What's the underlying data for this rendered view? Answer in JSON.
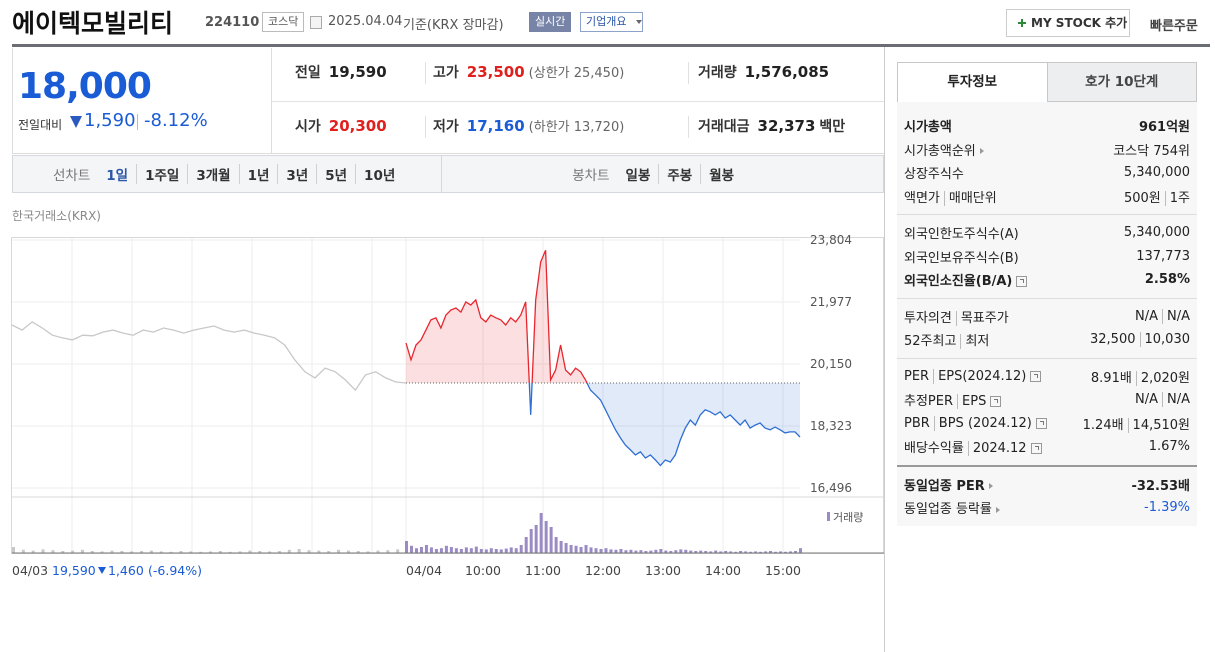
{
  "header": {
    "name": "에이텍모빌리티",
    "code": "224110",
    "market": "코스닥",
    "date": "2025.04.04",
    "basis": "기준(KRX 장마감)",
    "realtime": "실시간",
    "overview": "기업개요",
    "my_stock": "MY STOCK 추가",
    "quick_order": "빠른주문"
  },
  "quote": {
    "price": "18,000",
    "change_label": "전일대비",
    "change": "1,590",
    "change_rate": "-8.12%"
  },
  "summary": {
    "rows": [
      [
        {
          "label": "전일",
          "value": "19,590"
        },
        {
          "label": "고가",
          "value": "23,500",
          "color": "#e0201c",
          "note": "(상한가 25,450)"
        },
        {
          "label": "거래량",
          "value": "1,576,085"
        }
      ],
      [
        {
          "label": "시가",
          "value": "20,300",
          "color": "#e0201c"
        },
        {
          "label": "저가",
          "value": "17,160",
          "color": "#1a5bd6",
          "note": "(하한가 13,720)"
        },
        {
          "label": "거래대금",
          "value": "32,373",
          "unit": "백만"
        }
      ]
    ]
  },
  "tabs": {
    "line_label": "선차트",
    "line": [
      "1일",
      "1주일",
      "3개월",
      "1년",
      "3년",
      "5년",
      "10년"
    ],
    "line_active": 0,
    "candle_label": "봉차트",
    "candle": [
      "일봉",
      "주봉",
      "월봉"
    ]
  },
  "chart": {
    "source": "한국거래소(KRX)",
    "ylim": [
      16496,
      23804
    ],
    "yticks": [
      {
        "value": 23804,
        "label": "23,804"
      },
      {
        "value": 21977,
        "label": "21,977"
      },
      {
        "value": 20150,
        "label": "20,150"
      },
      {
        "value": 18323,
        "label": "18,323"
      },
      {
        "value": 16496,
        "label": "16,496"
      }
    ],
    "prev_close": 19590,
    "prev_day": [
      21300,
      21150,
      21390,
      21210,
      21000,
      20920,
      20860,
      21000,
      20980,
      21090,
      21150,
      21060,
      21000,
      21150,
      21090,
      21210,
      21150,
      21060,
      21150,
      21210,
      21270,
      21150,
      21090,
      21150,
      21060,
      21000,
      20920,
      20710,
      20270,
      19920,
      19740,
      20030,
      19920,
      19680,
      19380,
      19830,
      19920,
      19740,
      19620,
      19590
    ],
    "today": [
      20770,
      20270,
      20710,
      20860,
      21150,
      21450,
      21510,
      21210,
      21590,
      21740,
      21800,
      21680,
      21980,
      21890,
      22040,
      21510,
      21390,
      21590,
      21510,
      21450,
      21300,
      21510,
      21390,
      21590,
      21980,
      18650,
      22040,
      23160,
      23500,
      19680,
      19970,
      20710,
      19970,
      19830,
      20030,
      19920,
      19680,
      19380,
      19240,
      19090,
      18800,
      18500,
      18210,
      17970,
      17760,
      17620,
      17470,
      17560,
      17380,
      17470,
      17320,
      17160,
      17320,
      17260,
      17470,
      17910,
      18260,
      18500,
      18350,
      18650,
      18800,
      18740,
      18650,
      18740,
      18560,
      18650,
      18500,
      18350,
      18500,
      18260,
      18350,
      18410,
      18260,
      18210,
      18290,
      18210,
      18120,
      18150,
      18150,
      18000
    ],
    "up_color": "#e8262e",
    "down_color": "#2f6fd4",
    "prev_color": "#c8c8c8",
    "volume_label": "거래량",
    "volume_color": "#9b8bc4",
    "vlim": [
      0,
      120000
    ],
    "volume_prev": [
      15000,
      8000,
      6000,
      9000,
      7000,
      5000,
      6000,
      8000,
      5000,
      4000,
      6000,
      5000,
      4000,
      5000,
      6000,
      4000,
      3000,
      5000,
      4000,
      3000,
      4000,
      5000,
      3000,
      4000,
      6000,
      5000,
      4000,
      5000,
      8000,
      10000,
      7000,
      6000,
      5000,
      8000,
      6000,
      5000,
      4000,
      6000,
      7000,
      9000
    ],
    "volume_today": [
      30000,
      18000,
      12000,
      15000,
      20000,
      14000,
      10000,
      12000,
      18000,
      15000,
      12000,
      10000,
      14000,
      12000,
      16000,
      10000,
      9000,
      12000,
      10000,
      9000,
      11000,
      14000,
      12000,
      20000,
      40000,
      60000,
      70000,
      100000,
      80000,
      65000,
      40000,
      30000,
      25000,
      20000,
      18000,
      15000,
      20000,
      14000,
      12000,
      10000,
      12000,
      9000,
      8000,
      10000,
      7000,
      8000,
      6000,
      7000,
      5000,
      6000,
      8000,
      10000,
      6000,
      5000,
      7000,
      9000,
      8000,
      6000,
      5000,
      6000,
      5000,
      4000,
      6000,
      4000,
      5000,
      4000,
      3000,
      5000,
      4000,
      3000,
      4000,
      3000,
      4000,
      5000,
      3000,
      4000,
      3000,
      4000,
      5000,
      12000
    ],
    "x_labels": [
      "04/03",
      "04/04",
      "10:00",
      "11:00",
      "12:00",
      "13:00",
      "14:00",
      "15:00"
    ],
    "prev_summary": {
      "date": "04/03",
      "close": "19,590",
      "change": "1,460",
      "rate": "(-6.94%)"
    }
  },
  "info": {
    "tabs": [
      "투자정보",
      "호가 10단계"
    ],
    "groups": [
      [
        {
          "label": [
            "시가총액"
          ],
          "value": [
            "961억원"
          ],
          "strong": true
        },
        {
          "label": [
            "시가총액순위"
          ],
          "arrow": true,
          "value": [
            "코스닥 754위"
          ]
        },
        {
          "label": [
            "상장주식수"
          ],
          "value": [
            "5,340,000"
          ]
        },
        {
          "label": [
            "액면가",
            "매매단위"
          ],
          "value": [
            "500원",
            "1주"
          ]
        }
      ],
      [
        {
          "label": [
            "외국인한도주식수(A)"
          ],
          "value": [
            "5,340,000"
          ]
        },
        {
          "label": [
            "외국인보유주식수(B)"
          ],
          "value": [
            "137,773"
          ]
        },
        {
          "label": [
            "외국인소진율(B/A)"
          ],
          "help": true,
          "value": [
            "2.58%"
          ],
          "strong": true
        }
      ],
      [
        {
          "label": [
            "투자의견",
            "목표주가"
          ],
          "value": [
            "N/A",
            "N/A"
          ]
        },
        {
          "label": [
            "52주최고",
            "최저"
          ],
          "value": [
            "32,500",
            "10,030"
          ]
        }
      ],
      [
        {
          "label": [
            "PER",
            "EPS(2024.12)"
          ],
          "help": true,
          "value": [
            "8.91배",
            "2,020원"
          ]
        },
        {
          "label": [
            "추정PER",
            "EPS"
          ],
          "help": true,
          "value": [
            "N/A",
            "N/A"
          ]
        },
        {
          "label": [
            "PBR",
            "BPS (2024.12)"
          ],
          "help": true,
          "value": [
            "1.24배",
            "14,510원"
          ]
        },
        {
          "label": [
            "배당수익률",
            "2024.12"
          ],
          "help": true,
          "value": [
            "1.67%"
          ]
        }
      ],
      [
        {
          "label": [
            "동일업종 PER"
          ],
          "arrow": true,
          "value": [
            "-32.53배"
          ],
          "strong": true
        },
        {
          "label": [
            "동일업종 등락률"
          ],
          "arrow": true,
          "value": [
            "-1.39%"
          ],
          "color": "#1a5bd6"
        }
      ]
    ]
  }
}
